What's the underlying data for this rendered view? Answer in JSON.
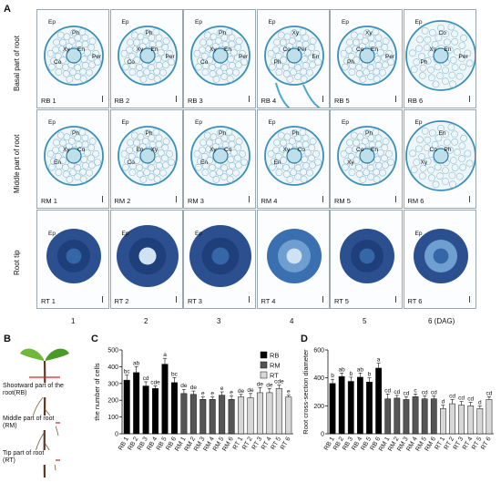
{
  "panels": {
    "A": "A",
    "B": "B",
    "C": "C",
    "D": "D"
  },
  "row_labels": [
    "Basal part of root",
    "Middle part of root",
    "Root tip"
  ],
  "day_labels": [
    "1",
    "2",
    "3",
    "4",
    "5",
    "6 (DAG)"
  ],
  "cells": [
    {
      "label": "RB 1",
      "tissues": [
        "Ep",
        "Ph",
        "Xy",
        "Co",
        "En",
        "Per"
      ]
    },
    {
      "label": "RB 2",
      "tissues": [
        "Ep",
        "Ph",
        "Xy",
        "Co",
        "En",
        "Per"
      ]
    },
    {
      "label": "RB 3",
      "tissues": [
        "Ep",
        "Ph",
        "Xy",
        "Co",
        "En",
        "Per"
      ]
    },
    {
      "label": "RB 4",
      "tissues": [
        "Ep",
        "Xy",
        "Co",
        "Ph",
        "Per",
        "En"
      ]
    },
    {
      "label": "RB 5",
      "tissues": [
        "Ep",
        "Xy",
        "Co",
        "Ph",
        "En",
        "Per"
      ]
    },
    {
      "label": "RB 6",
      "tissues": [
        "Ep",
        "Co",
        "Xy",
        "Ph",
        "En",
        "Per"
      ]
    },
    {
      "label": "RM 1",
      "tissues": [
        "Ep",
        "Ph",
        "Xy",
        "En",
        "Co"
      ]
    },
    {
      "label": "RM 2",
      "tissues": [
        "Ep",
        "Ph",
        "En",
        "Co",
        "Xy"
      ]
    },
    {
      "label": "RM 3",
      "tissues": [
        "Ep",
        "Ph",
        "Xy",
        "En",
        "Co"
      ]
    },
    {
      "label": "RM 4",
      "tissues": [
        "Ep",
        "Ph",
        "Xy",
        "En",
        "Co"
      ]
    },
    {
      "label": "RM 5",
      "tissues": [
        "Ep",
        "Ph",
        "Co",
        "Xy",
        "En"
      ]
    },
    {
      "label": "RM 6",
      "tissues": [
        "Ep",
        "En",
        "Co",
        "Xy",
        "Ph"
      ]
    },
    {
      "label": "RT 1",
      "tissues": [
        "Ep"
      ]
    },
    {
      "label": "RT 2",
      "tissues": [
        "Ep"
      ]
    },
    {
      "label": "RT 3",
      "tissues": [
        "Ep"
      ]
    },
    {
      "label": "RT 4",
      "tissues": []
    },
    {
      "label": "RT 5",
      "tissues": []
    },
    {
      "label": "RT 6",
      "tissues": [
        "Ep"
      ]
    }
  ],
  "diagram": {
    "shootward": "Shootward part of the root(RB)",
    "middle": "Middle part of root (RM)",
    "tip": "Tip part of root (RT)"
  },
  "chart_data": [
    {
      "type": "bar",
      "ylabel": "the number of cells",
      "ylim": [
        0,
        500
      ],
      "yticks": [
        0,
        100,
        200,
        300,
        400,
        500
      ],
      "legend": [
        "RB",
        "RM",
        "RT"
      ],
      "legend_colors": [
        "#000000",
        "#555555",
        "#d8d8d8"
      ],
      "categories": [
        "RB 1",
        "RB 2",
        "RB 3",
        "RB 4",
        "RB 5",
        "RB 6",
        "RM 1",
        "RM 2",
        "RM 3",
        "RM 4",
        "RM 5",
        "RM 6",
        "RT 1",
        "RT 2",
        "RT 3",
        "RT 4",
        "RT 5",
        "RT 6"
      ],
      "values": [
        320,
        365,
        285,
        270,
        415,
        305,
        240,
        235,
        205,
        205,
        230,
        205,
        220,
        215,
        245,
        245,
        270,
        220
      ],
      "errors": [
        30,
        35,
        25,
        15,
        35,
        30,
        25,
        20,
        15,
        15,
        20,
        20,
        15,
        25,
        30,
        25,
        20,
        10
      ],
      "letters": [
        "bc",
        "ab",
        "cd",
        "cde",
        "a",
        "bc",
        "de",
        "de",
        "e",
        "e",
        "e",
        "e",
        "de",
        "de",
        "de",
        "de",
        "cde",
        "e"
      ]
    },
    {
      "type": "bar",
      "ylabel": "Root cross-section diameter",
      "ylim": [
        0,
        600
      ],
      "yticks": [
        0,
        200,
        400,
        600
      ],
      "categories": [
        "RB 1",
        "RB 2",
        "RB 3",
        "RB 4",
        "RB 5",
        "RB 6",
        "RM 1",
        "RM 2",
        "RM 3",
        "RM 4",
        "RM 5",
        "RM 6",
        "RT 1",
        "RT 2",
        "RT 3",
        "RT 4",
        "RT 5",
        "RT 6"
      ],
      "values": [
        360,
        410,
        375,
        405,
        370,
        470,
        250,
        255,
        245,
        265,
        250,
        250,
        180,
        215,
        205,
        200,
        180,
        245
      ],
      "errors": [
        30,
        25,
        30,
        30,
        30,
        35,
        35,
        20,
        20,
        20,
        20,
        20,
        25,
        30,
        25,
        25,
        20,
        20
      ],
      "letters": [
        "b",
        "ab",
        "b",
        "ab",
        "b",
        "a",
        "cd",
        "cd",
        "cd",
        "c",
        "cd",
        "cd",
        "d",
        "cd",
        "cd",
        "cd",
        "d",
        "cd"
      ]
    }
  ]
}
